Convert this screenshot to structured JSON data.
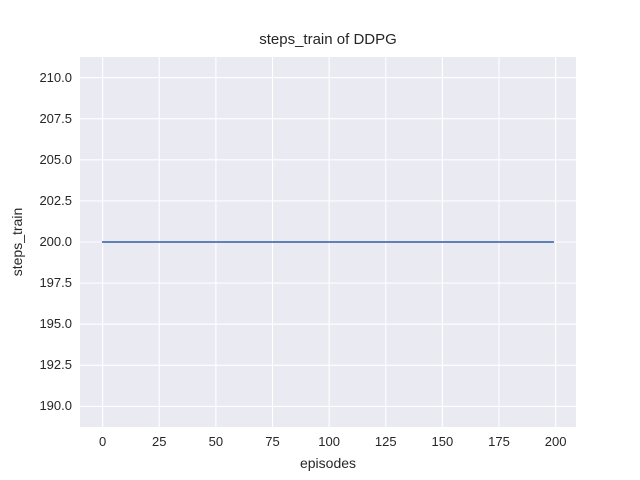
{
  "figure": {
    "title": "steps_train of DDPG",
    "xlabel": "episodes",
    "ylabel": "steps_train"
  },
  "chart_data": {
    "type": "line",
    "title": "steps_train of DDPG",
    "xlabel": "episodes",
    "ylabel": "steps_train",
    "x_ticks": [
      0,
      25,
      50,
      75,
      100,
      125,
      150,
      175,
      200
    ],
    "x_tick_labels": [
      "0",
      "25",
      "50",
      "75",
      "100",
      "125",
      "150",
      "175",
      "200"
    ],
    "y_ticks": [
      190.0,
      192.5,
      195.0,
      197.5,
      200.0,
      202.5,
      205.0,
      207.5,
      210.0
    ],
    "y_tick_labels": [
      "190.0",
      "192.5",
      "195.0",
      "197.5",
      "200.0",
      "202.5",
      "205.0",
      "207.5",
      "210.0"
    ],
    "xlim": [
      -10,
      209
    ],
    "ylim": [
      188.75,
      211.25
    ],
    "grid": true,
    "legend": false,
    "plot_bg_color": "#EAEAF2",
    "grid_color": "#FFFFFF",
    "text_color": "#262626",
    "series": [
      {
        "name": "steps_train",
        "color": "#4C72B0",
        "line_width": 1.8,
        "x": [
          0,
          199
        ],
        "y": [
          200,
          200
        ]
      }
    ]
  }
}
